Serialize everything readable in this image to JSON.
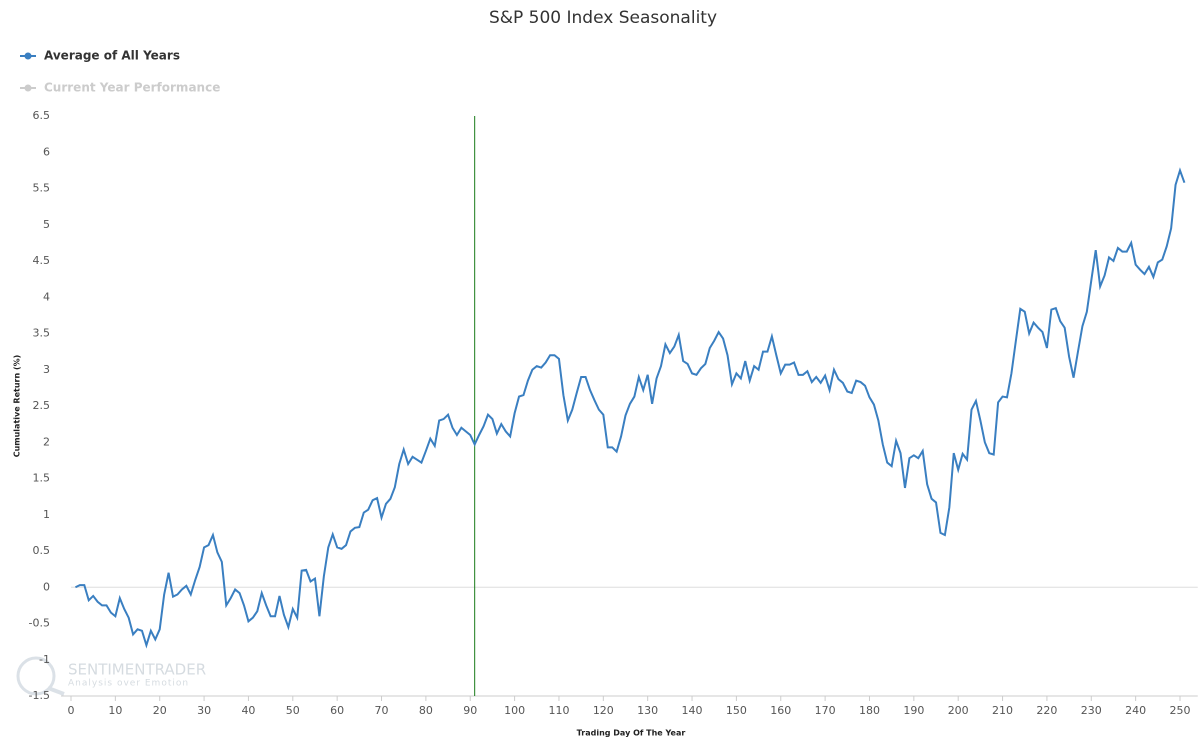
{
  "chart_data": {
    "type": "line",
    "title": "S&P 500 Index Seasonality",
    "x_label": "Trading Day Of The Year",
    "y_label": "Cumulative Return (%)",
    "watermark": {
      "brand": "SENTIMENTRADER",
      "tagline": "Analysis over Emotion"
    },
    "xlim": [
      0,
      254
    ],
    "ylim": [
      -1.5,
      6.5
    ],
    "xticks": [
      0,
      10,
      20,
      30,
      40,
      50,
      60,
      70,
      80,
      90,
      100,
      110,
      120,
      130,
      140,
      150,
      160,
      170,
      180,
      190,
      200,
      210,
      220,
      230,
      240,
      250
    ],
    "yticks": [
      -1.5,
      -1,
      -0.5,
      0,
      0.5,
      1,
      1.5,
      2,
      2.5,
      3,
      3.5,
      4,
      4.5,
      5,
      5.5,
      6,
      6.5
    ],
    "vline_x": 91,
    "vline_color": "#1a7a1a",
    "x": [
      1,
      2,
      3,
      4,
      5,
      6,
      7,
      8,
      9,
      10,
      11,
      12,
      13,
      14,
      15,
      16,
      17,
      18,
      19,
      20,
      21,
      22,
      23,
      24,
      25,
      26,
      27,
      28,
      29,
      30,
      31,
      32,
      33,
      34,
      35,
      36,
      37,
      38,
      39,
      40,
      41,
      42,
      43,
      44,
      45,
      46,
      47,
      48,
      49,
      50,
      51,
      52,
      53,
      54,
      55,
      56,
      57,
      58,
      59,
      60,
      61,
      62,
      63,
      64,
      65,
      66,
      67,
      68,
      69,
      70,
      71,
      72,
      73,
      74,
      75,
      76,
      77,
      78,
      79,
      80,
      81,
      82,
      83,
      84,
      85,
      86,
      87,
      88,
      89,
      90,
      91,
      92,
      93,
      94,
      95,
      96,
      97,
      98,
      99,
      100,
      101,
      102,
      103,
      104,
      105,
      106,
      107,
      108,
      109,
      110,
      111,
      112,
      113,
      114,
      115,
      116,
      117,
      118,
      119,
      120,
      121,
      122,
      123,
      124,
      125,
      126,
      127,
      128,
      129,
      130,
      131,
      132,
      133,
      134,
      135,
      136,
      137,
      138,
      139,
      140,
      141,
      142,
      143,
      144,
      145,
      146,
      147,
      148,
      149,
      150,
      151,
      152,
      153,
      154,
      155,
      156,
      157,
      158,
      159,
      160,
      161,
      162,
      163,
      164,
      165,
      166,
      167,
      168,
      169,
      170,
      171,
      172,
      173,
      174,
      175,
      176,
      177,
      178,
      179,
      180,
      181,
      182,
      183,
      184,
      185,
      186,
      187,
      188,
      189,
      190,
      191,
      192,
      193,
      194,
      195,
      196,
      197,
      198,
      199,
      200,
      201,
      202,
      203,
      204,
      205,
      206,
      207,
      208,
      209,
      210,
      211,
      212,
      213,
      214,
      215,
      216,
      217,
      218,
      219,
      220,
      221,
      222,
      223,
      224,
      225,
      226,
      227,
      228,
      229,
      230,
      231,
      232,
      233,
      234,
      235,
      236,
      237,
      238,
      239,
      240,
      241,
      242,
      243,
      244,
      245,
      246,
      247,
      248,
      249,
      250,
      251
    ],
    "series": [
      {
        "name": "Average of All Years",
        "color": "#3a7fc1",
        "visible": true,
        "values": [
          0,
          0.03,
          0.03,
          -0.18,
          -0.12,
          -0.2,
          -0.25,
          -0.25,
          -0.35,
          -0.4,
          -0.15,
          -0.3,
          -0.42,
          -0.65,
          -0.58,
          -0.6,
          -0.8,
          -0.6,
          -0.72,
          -0.58,
          -0.1,
          0.2,
          -0.13,
          -0.1,
          -0.03,
          0.02,
          -0.1,
          0.1,
          0.28,
          0.55,
          0.58,
          0.72,
          0.48,
          0.35,
          -0.25,
          -0.15,
          -0.03,
          -0.08,
          -0.25,
          -0.47,
          -0.42,
          -0.33,
          -0.08,
          -0.25,
          -0.4,
          -0.4,
          -0.12,
          -0.38,
          -0.55,
          -0.3,
          -0.42,
          0.23,
          0.24,
          0.08,
          0.12,
          -0.4,
          0.15,
          0.55,
          0.73,
          0.55,
          0.53,
          0.58,
          0.77,
          0.82,
          0.83,
          1.03,
          1.07,
          1.2,
          1.23,
          0.96,
          1.15,
          1.22,
          1.38,
          1.7,
          1.9,
          1.7,
          1.8,
          1.76,
          1.72,
          1.88,
          2.05,
          1.95,
          2.3,
          2.32,
          2.38,
          2.2,
          2.1,
          2.2,
          2.15,
          2.1,
          1.97,
          2.1,
          2.22,
          2.38,
          2.32,
          2.12,
          2.25,
          2.15,
          2.08,
          2.4,
          2.63,
          2.65,
          2.85,
          3,
          3.05,
          3.03,
          3.1,
          3.2,
          3.2,
          3.15,
          2.65,
          2.3,
          2.45,
          2.68,
          2.9,
          2.9,
          2.72,
          2.58,
          2.45,
          2.38,
          1.93,
          1.93,
          1.87,
          2.08,
          2.37,
          2.53,
          2.63,
          2.9,
          2.72,
          2.93,
          2.53,
          2.88,
          3.05,
          3.35,
          3.23,
          3.32,
          3.48,
          3.12,
          3.08,
          2.95,
          2.93,
          3.02,
          3.08,
          3.3,
          3.4,
          3.52,
          3.43,
          3.2,
          2.8,
          2.95,
          2.88,
          3.12,
          2.85,
          3.05,
          3,
          3.25,
          3.25,
          3.46,
          3.2,
          2.95,
          3.07,
          3.07,
          3.1,
          2.93,
          2.93,
          2.98,
          2.83,
          2.9,
          2.82,
          2.92,
          2.72,
          3,
          2.87,
          2.82,
          2.7,
          2.68,
          2.85,
          2.83,
          2.78,
          2.62,
          2.52,
          2.3,
          1.97,
          1.72,
          1.67,
          2.02,
          1.85,
          1.37,
          1.78,
          1.82,
          1.78,
          1.88,
          1.42,
          1.22,
          1.17,
          0.75,
          0.72,
          1.1,
          1.85,
          1.62,
          1.84,
          1.76,
          2.45,
          2.57,
          2.3,
          2,
          1.85,
          1.83,
          2.55,
          2.63,
          2.62,
          2.95,
          3.4,
          3.84,
          3.8,
          3.5,
          3.65,
          3.58,
          3.52,
          3.3,
          3.83,
          3.85,
          3.67,
          3.58,
          3.18,
          2.89,
          3.25,
          3.6,
          3.8,
          4.23,
          4.65,
          4.15,
          4.3,
          4.55,
          4.5,
          4.68,
          4.63,
          4.63,
          4.75,
          4.45,
          4.38,
          4.32,
          4.42,
          4.28,
          4.48,
          4.52,
          4.7,
          4.95,
          5.55,
          5.75,
          5.58
        ]
      },
      {
        "name": "Current Year Performance",
        "color": "#cccccc",
        "visible": false
      }
    ]
  }
}
